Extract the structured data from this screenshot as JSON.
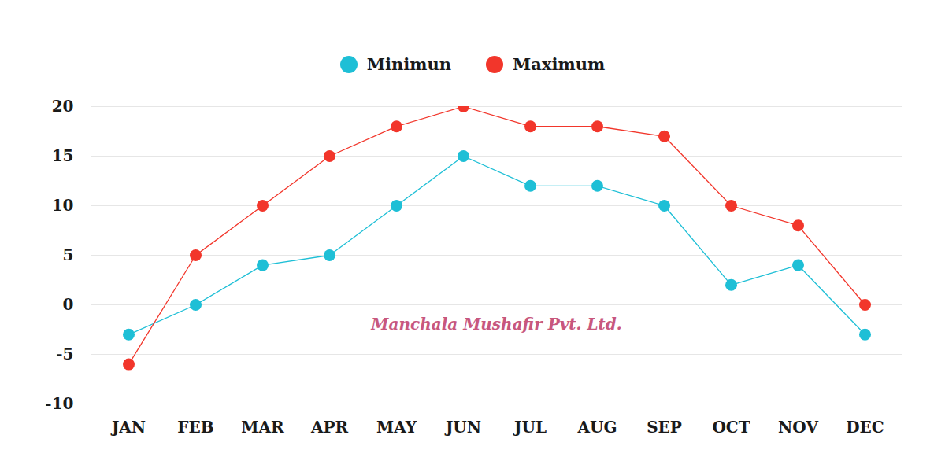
{
  "chart_data": {
    "type": "line",
    "categories": [
      "JAN",
      "FEB",
      "MAR",
      "APR",
      "MAY",
      "JUN",
      "JUL",
      "AUG",
      "SEP",
      "OCT",
      "NOV",
      "DEC"
    ],
    "series": [
      {
        "name": "Minimun",
        "color": "#1ebfd6",
        "marker": "circle",
        "values": [
          -3,
          0,
          4,
          5,
          10,
          15,
          12,
          12,
          10,
          2,
          4,
          -3
        ]
      },
      {
        "name": "Maximum",
        "color": "#f2362b",
        "marker": "circle",
        "values": [
          -6,
          5,
          10,
          15,
          18,
          20,
          18,
          18,
          17,
          10,
          8,
          0
        ]
      }
    ],
    "ylim": [
      -10,
      20
    ],
    "yticks": [
      -10,
      -5,
      0,
      5,
      10,
      15,
      20
    ],
    "grid": true,
    "legend": "top",
    "annotations": [
      "Manchala Mushafir Pvt. Ltd."
    ]
  }
}
